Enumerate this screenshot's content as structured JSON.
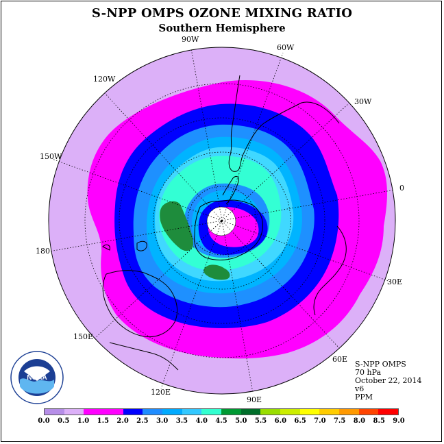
{
  "title": "S-NPP OMPS OZONE MIXING RATIO",
  "subtitle": "Southern Hemisphere",
  "info": {
    "instrument": "S-NPP OMPS",
    "level": "70 hPa",
    "date": "October 22, 2014",
    "version": "v6",
    "units": "PPM"
  },
  "logo": {
    "text": "NOAA",
    "ring_text": "NATIONAL OCEANIC AND ATMOSPHERIC ADMINISTRATION · U.S. DEPARTMENT OF COMMERCE",
    "icon": "noaa-logo-icon"
  },
  "longitude_labels": [
    "90W",
    "60W",
    "30W",
    "0",
    "30E",
    "60E",
    "90E",
    "120E",
    "150E",
    "180",
    "150W",
    "120W"
  ],
  "colorbar": {
    "ticks": [
      "0.0",
      "0.5",
      "1.0",
      "1.5",
      "2.0",
      "2.5",
      "3.0",
      "3.5",
      "4.0",
      "4.5",
      "5.0",
      "5.5",
      "6.0",
      "6.5",
      "7.0",
      "7.5",
      "8.0",
      "8.5",
      "9.0"
    ],
    "colors": [
      "#b68ee8",
      "#dcb0f8",
      "#ff00ff",
      "#ff00ff",
      "#0000ff",
      "#1f8cff",
      "#00aaff",
      "#33c8ff",
      "#33ffd0",
      "#009933",
      "#006e2a",
      "#99dd00",
      "#ccee00",
      "#ffff00",
      "#ffcc00",
      "#ff9900",
      "#ff4400",
      "#ff0000",
      "#8b5a2b"
    ]
  },
  "levels": {
    "lavender": "#dcb0f8",
    "magenta": "#ff00ff",
    "blue": "#0000ff",
    "azure": "#1e90ff",
    "sky": "#00b4ff",
    "light_sky": "#40d8ff",
    "cyan": "#33ffd4",
    "green": "#1e8c3c",
    "white": "#ffffff"
  }
}
